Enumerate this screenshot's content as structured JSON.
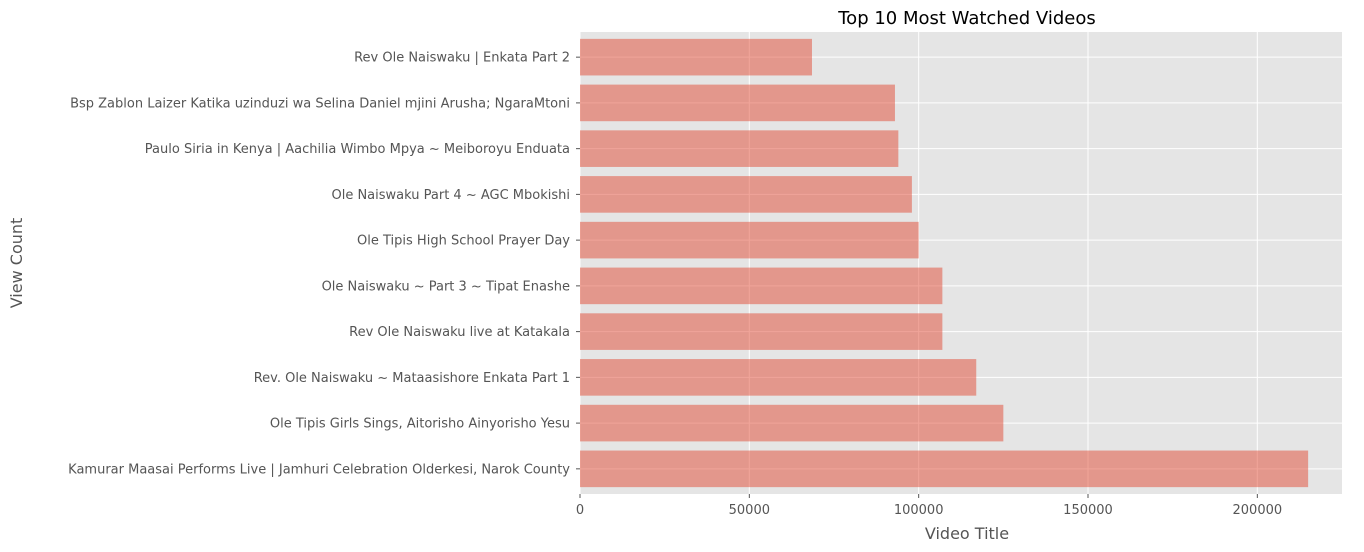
{
  "chart_data": {
    "type": "bar",
    "orientation": "horizontal",
    "title": "Top 10 Most Watched Videos",
    "xlabel": "Video Title",
    "ylabel": "View Count",
    "categories": [
      "Kamurar Maasai Performs Live | Jamhuri Celebration Olderkesi, Narok County",
      "Ole Tipis Girls Sings, Aitorisho Ainyorisho Yesu",
      "Rev. Ole Naiswaku ~ Mataasishore Enkata Part 1",
      "Rev Ole Naiswaku live at Katakala",
      "Ole Naiswaku ~ Part 3 ~ Tipat Enashe",
      "Ole Tipis High School Prayer Day",
      "Ole Naiswaku Part 4 ~ AGC Mbokishi",
      "Paulo Siria in Kenya | Aachilia Wimbo Mpya ~ Meiboroyu Enduata",
      "Bsp Zablon Laizer Katika uzinduzi wa Selina Daniel mjini Arusha; NgaraMtoni",
      "Rev Ole Naiswaku | Enkata Part 2"
    ],
    "values": [
      215000,
      125000,
      117000,
      107000,
      107000,
      100000,
      98000,
      94000,
      93000,
      68500
    ],
    "xlim": [
      0,
      225000
    ],
    "xticks": [
      0,
      50000,
      100000,
      150000,
      200000
    ],
    "xtick_labels": [
      "0",
      "50000",
      "100000",
      "150000",
      "200000"
    ],
    "grid": true,
    "colors": {
      "bar": "#E24A33",
      "bar_opacity": 0.5,
      "plot_background": "#E5E5E5",
      "grid": "#FFFFFF",
      "text": "#555555",
      "title": "#000000"
    }
  }
}
